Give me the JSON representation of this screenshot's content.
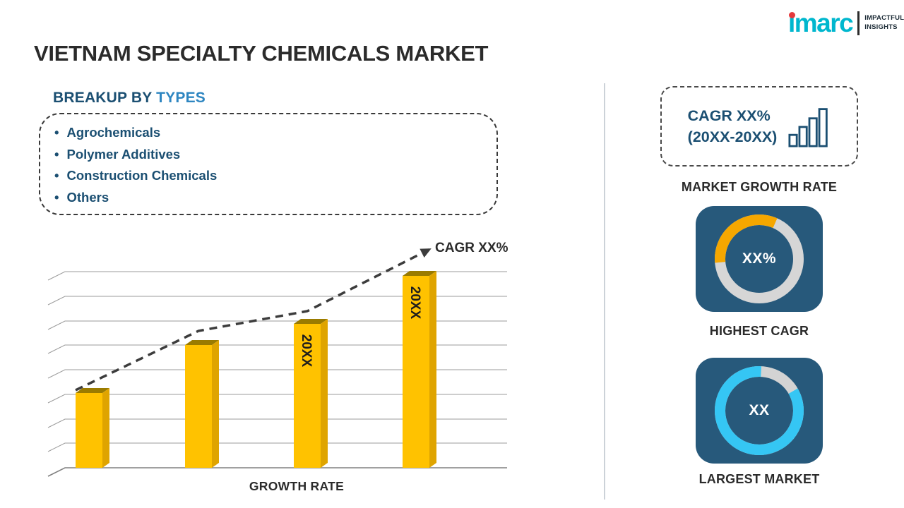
{
  "page": {
    "title": "VIETNAM SPECIALTY CHEMICALS MARKET"
  },
  "logo": {
    "brand": "imarc",
    "tagline_line1": "IMPACTFUL",
    "tagline_line2": "INSIGHTS"
  },
  "breakup": {
    "heading_prefix": "BREAKUP BY ",
    "heading_highlight": "TYPES",
    "bullet": "•",
    "items": [
      "Agrochemicals",
      "Polymer Additives",
      "Construction Chemicals",
      "Others"
    ]
  },
  "chart_data": [
    {
      "type": "bar",
      "title": "",
      "xlabel": "GROWTH RATE",
      "ylabel": "",
      "categories": [
        "",
        "",
        "20XX",
        "20XX"
      ],
      "values": [
        39,
        64,
        75,
        100
      ],
      "value_note": "relative bar heights in % of tallest bar; placeholder infographic values",
      "ylim": [
        0,
        100
      ],
      "gridlines": true,
      "legend": false,
      "trend_label": "CAGR XX%",
      "trend": "increasing dashed arrow",
      "bar_color": "#FFC200",
      "bar_side_color": "#DFA400",
      "bar_top_color": "#9A7B00"
    },
    {
      "type": "pie",
      "style": "donut",
      "center_label": "XX%",
      "caption": "HIGHEST CAGR",
      "segments": [
        {
          "name": "highlight",
          "pct": 33,
          "color": "#F5A700"
        },
        {
          "name": "remainder",
          "pct": 67,
          "color": "#D6D6D6"
        }
      ]
    },
    {
      "type": "pie",
      "style": "donut",
      "center_label": "XX",
      "caption": "LARGEST MARKET",
      "segments": [
        {
          "name": "highlight",
          "pct": 84,
          "color": "#35C6F4"
        },
        {
          "name": "remainder",
          "pct": 16,
          "color": "#D3D3D3"
        }
      ]
    }
  ],
  "sidebar": {
    "growth_box": {
      "line1": "CAGR XX%",
      "line2": "(20XX-20XX)"
    },
    "market_growth_label": "MARKET GROWTH RATE"
  },
  "colors": {
    "brand_teal": "#00B7CE",
    "logo_red": "#E5393C",
    "heading_navy": "#1B4F72",
    "heading_blue": "#2E86C1",
    "bar_gold": "#FFC200",
    "tile_navy": "#27597B",
    "donut_orange": "#F5A700",
    "donut_cyan": "#35C6F4",
    "donut_gray": "#D6D6D6",
    "text_dark": "#2B2B2B"
  }
}
